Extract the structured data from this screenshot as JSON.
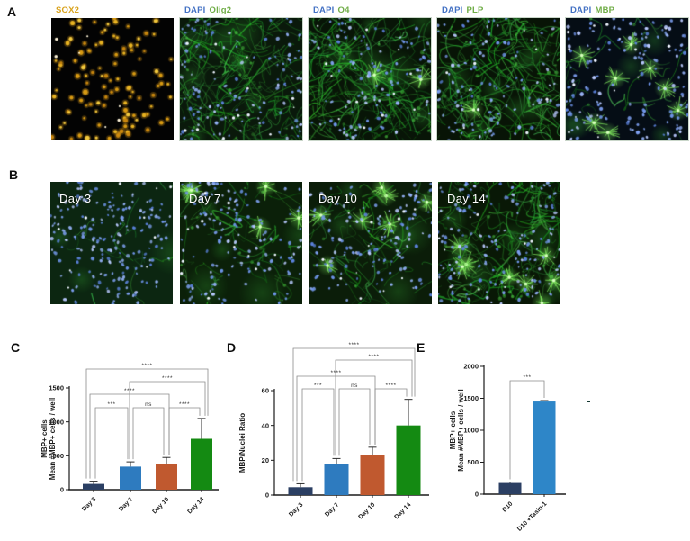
{
  "panels": {
    "A": {
      "label": "A",
      "images": [
        {
          "title_parts": [
            {
              "text": "SOX2",
              "color": "#D9A21B"
            }
          ],
          "look": {
            "bg": "#030303",
            "gold": 112,
            "white": 7
          }
        },
        {
          "title_parts": [
            {
              "text": "DAPI",
              "color": "#4472C4"
            },
            {
              "text": "Olig2",
              "color": "#70AD47"
            }
          ],
          "look": {
            "bg": "#0a190b",
            "mesh": 120,
            "nuclei": 125,
            "white": 16,
            "bursts": 0,
            "blobs": 8
          }
        },
        {
          "title_parts": [
            {
              "text": "DAPI",
              "color": "#4472C4"
            },
            {
              "text": "O4",
              "color": "#70AD47"
            }
          ],
          "look": {
            "bg": "#081507",
            "mesh": 135,
            "nuclei": 115,
            "white": 12,
            "bursts": 2,
            "blobs": 10
          }
        },
        {
          "title_parts": [
            {
              "text": "DAPI",
              "color": "#4472C4"
            },
            {
              "text": "PLP",
              "color": "#70AD47"
            }
          ],
          "look": {
            "bg": "#081406",
            "mesh": 128,
            "nuclei": 105,
            "white": 10,
            "bursts": 1,
            "blobs": 8
          }
        },
        {
          "title_parts": [
            {
              "text": "DAPI",
              "color": "#4472C4"
            },
            {
              "text": "MBP",
              "color": "#70AD47"
            }
          ],
          "look": {
            "bg": "#050d15",
            "mesh": 16,
            "nuclei": 150,
            "white": 16,
            "bursts": 8,
            "blobs": 5
          }
        }
      ]
    },
    "B": {
      "label": "B",
      "images": [
        {
          "overlay": "Day 3",
          "look": {
            "bg": "#0c2611",
            "mesh": 10,
            "nuclei": 200,
            "white": 10,
            "bursts": 0,
            "blobs": 3
          }
        },
        {
          "overlay": "Day 7",
          "look": {
            "bg": "#0b2009",
            "mesh": 32,
            "nuclei": 150,
            "white": 12,
            "bursts": 5,
            "blobs": 5
          }
        },
        {
          "overlay": "Day 10",
          "look": {
            "bg": "#0b1d09",
            "mesh": 36,
            "nuclei": 140,
            "white": 12,
            "bursts": 7,
            "blobs": 5
          }
        },
        {
          "overlay": "Day 14",
          "look": {
            "bg": "#091806",
            "mesh": 95,
            "nuclei": 150,
            "white": 10,
            "bursts": 8,
            "blobs": 9
          }
        }
      ]
    },
    "C": {
      "label": "C"
    },
    "D": {
      "label": "D"
    },
    "E": {
      "label": "E"
    }
  },
  "chart_data": [
    {
      "id": "C",
      "type": "bar",
      "categories": [
        "Day 3",
        "Day 7",
        "Day 10",
        "Day 14"
      ],
      "values": [
        85,
        340,
        385,
        750
      ],
      "errors": [
        40,
        70,
        90,
        300
      ],
      "bar_colors": [
        "#2B3F63",
        "#2E7BBF",
        "#C0592F",
        "#148A12"
      ],
      "ylabel_lines": [
        "MBP+ cells",
        "Mean #MBP+ cells / well"
      ],
      "yticks": [
        0,
        500,
        1000,
        1500
      ],
      "ylim": [
        0,
        1500
      ],
      "grid": false,
      "legend": "none",
      "significance": [
        {
          "from": "Day 3",
          "to": "Day 7",
          "label": "***"
        },
        {
          "from": "Day 7",
          "to": "Day 10",
          "label": "ns"
        },
        {
          "from": "Day 10",
          "to": "Day 14",
          "label": "****"
        },
        {
          "from": "Day 3",
          "to": "Day 10",
          "label": "****"
        },
        {
          "from": "Day 7",
          "to": "Day 14",
          "label": "****"
        },
        {
          "from": "Day 3",
          "to": "Day 14",
          "label": "****"
        }
      ]
    },
    {
      "id": "D",
      "type": "bar",
      "categories": [
        "Day 3",
        "Day 7",
        "Day 10",
        "Day 14"
      ],
      "values": [
        4.5,
        18,
        23,
        40
      ],
      "errors": [
        2,
        3,
        4.5,
        15
      ],
      "bar_colors": [
        "#2B3F63",
        "#2E7BBF",
        "#C0592F",
        "#148A12"
      ],
      "ylabel_lines": [
        "MBP/Nuclei Ratio"
      ],
      "yticks": [
        0,
        20,
        40,
        60
      ],
      "ylim": [
        0,
        60
      ],
      "grid": false,
      "legend": "none",
      "significance": [
        {
          "from": "Day 3",
          "to": "Day 7",
          "label": "***"
        },
        {
          "from": "Day 7",
          "to": "Day 10",
          "label": "ns"
        },
        {
          "from": "Day 10",
          "to": "Day 14",
          "label": "****"
        },
        {
          "from": "Day 3",
          "to": "Day 10",
          "label": "****"
        },
        {
          "from": "Day 7",
          "to": "Day 14",
          "label": "****"
        },
        {
          "from": "Day 3",
          "to": "Day 14",
          "label": "****"
        }
      ]
    },
    {
      "id": "E",
      "type": "bar",
      "categories": [
        "D10",
        "D10 +Tasin-1"
      ],
      "values": [
        175,
        1450
      ],
      "errors": [
        15,
        15
      ],
      "bar_colors": [
        "#2B3F63",
        "#2E86C8"
      ],
      "ylabel_lines": [
        "MBP+ cells",
        "Mean #MBP+ cells / well"
      ],
      "yticks": [
        0,
        500,
        1000,
        1500,
        2000
      ],
      "ylim": [
        0,
        2000
      ],
      "grid": false,
      "legend": "none",
      "significance": [
        {
          "from": "D10",
          "to": "D10 +Tasin-1",
          "label": "***"
        }
      ]
    }
  ]
}
